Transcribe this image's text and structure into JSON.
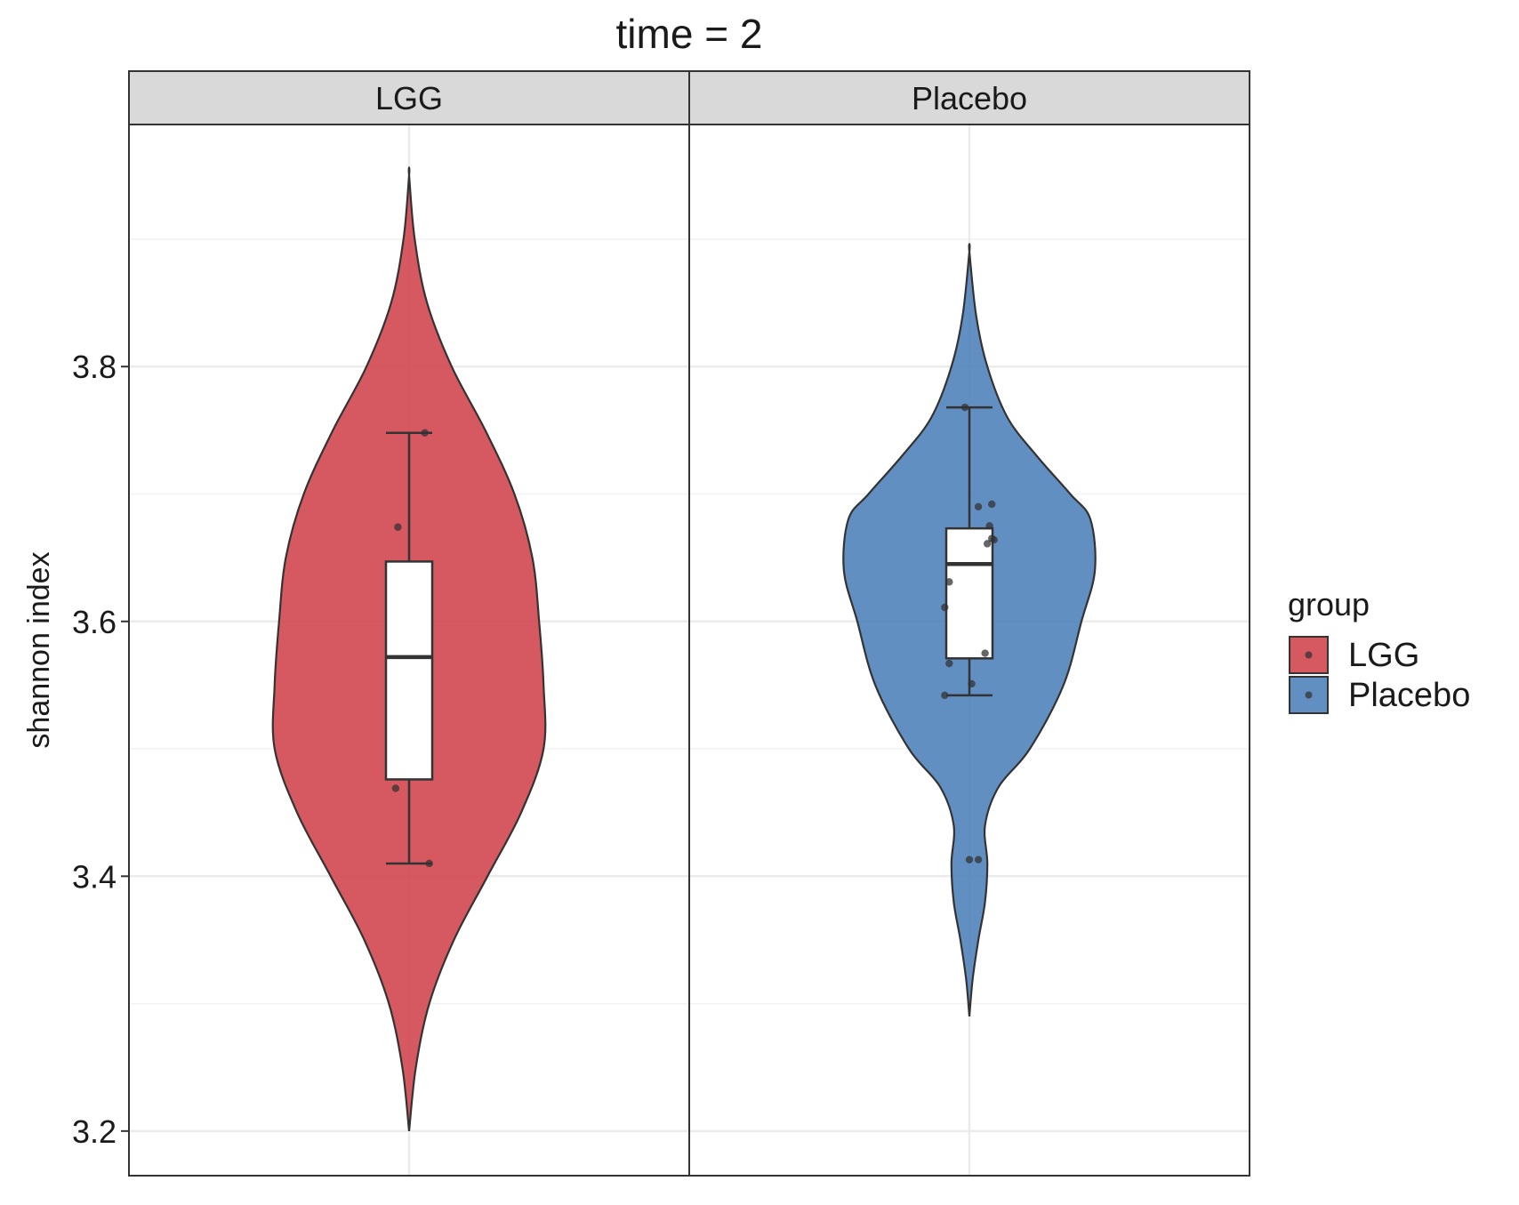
{
  "chart_data": {
    "type": "violin",
    "title": "time = 2",
    "xlabel": "",
    "ylabel": "shannon index",
    "ylim": [
      3.165,
      3.99
    ],
    "yticks": [
      3.2,
      3.4,
      3.6,
      3.8
    ],
    "ytick_labels": [
      "3.2",
      "3.4",
      "3.6",
      "3.8"
    ],
    "grid": true,
    "legend": {
      "title": "group",
      "position": "right",
      "entries": [
        "LGG",
        "Placebo"
      ]
    },
    "colors": {
      "LGG": "#d0414a",
      "Placebo": "#4c80b8",
      "strip_bg": "#d9d9d9",
      "outline": "#333333",
      "grid": "#ebebeb"
    },
    "facets": [
      {
        "label": "LGG",
        "group": "LGG",
        "violin_profile": [
          [
            3.2,
            0.0
          ],
          [
            3.25,
            0.03
          ],
          [
            3.3,
            0.09
          ],
          [
            3.35,
            0.2
          ],
          [
            3.4,
            0.35
          ],
          [
            3.45,
            0.5
          ],
          [
            3.5,
            0.6
          ],
          [
            3.55,
            0.6
          ],
          [
            3.6,
            0.58
          ],
          [
            3.65,
            0.55
          ],
          [
            3.7,
            0.47
          ],
          [
            3.75,
            0.34
          ],
          [
            3.8,
            0.19
          ],
          [
            3.85,
            0.08
          ],
          [
            3.9,
            0.025
          ],
          [
            3.95,
            0.0
          ]
        ],
        "box": {
          "whisker_low": 3.41,
          "q1": 3.476,
          "median": 3.572,
          "q3": 3.647,
          "whisker_high": 3.748
        },
        "points": [
          [
            0.07,
            3.748
          ],
          [
            -0.05,
            3.674
          ],
          [
            -0.06,
            3.469
          ],
          [
            0.09,
            3.41
          ]
        ]
      },
      {
        "label": "Placebo",
        "group": "Placebo",
        "violin_profile": [
          [
            3.29,
            0.0
          ],
          [
            3.32,
            0.015
          ],
          [
            3.35,
            0.04
          ],
          [
            3.38,
            0.07
          ],
          [
            3.41,
            0.08
          ],
          [
            3.44,
            0.07
          ],
          [
            3.47,
            0.13
          ],
          [
            3.5,
            0.27
          ],
          [
            3.55,
            0.42
          ],
          [
            3.6,
            0.5
          ],
          [
            3.64,
            0.56
          ],
          [
            3.68,
            0.54
          ],
          [
            3.7,
            0.45
          ],
          [
            3.73,
            0.3
          ],
          [
            3.76,
            0.17
          ],
          [
            3.8,
            0.08
          ],
          [
            3.84,
            0.03
          ],
          [
            3.89,
            0.0
          ]
        ],
        "box": {
          "whisker_low": 3.542,
          "q1": 3.571,
          "median": 3.645,
          "q3": 3.673,
          "whisker_high": 3.768
        },
        "points": [
          [
            -0.02,
            3.768
          ],
          [
            0.04,
            3.69
          ],
          [
            0.1,
            3.692
          ],
          [
            0.09,
            3.675
          ],
          [
            0.11,
            3.664
          ],
          [
            0.08,
            3.661
          ],
          [
            0.1,
            3.665
          ],
          [
            -0.09,
            3.631
          ],
          [
            -0.11,
            3.611
          ],
          [
            -0.09,
            3.567
          ],
          [
            0.07,
            3.575
          ],
          [
            0.01,
            3.551
          ],
          [
            -0.11,
            3.542
          ],
          [
            0.0,
            3.413
          ],
          [
            0.04,
            3.413
          ]
        ]
      }
    ]
  }
}
